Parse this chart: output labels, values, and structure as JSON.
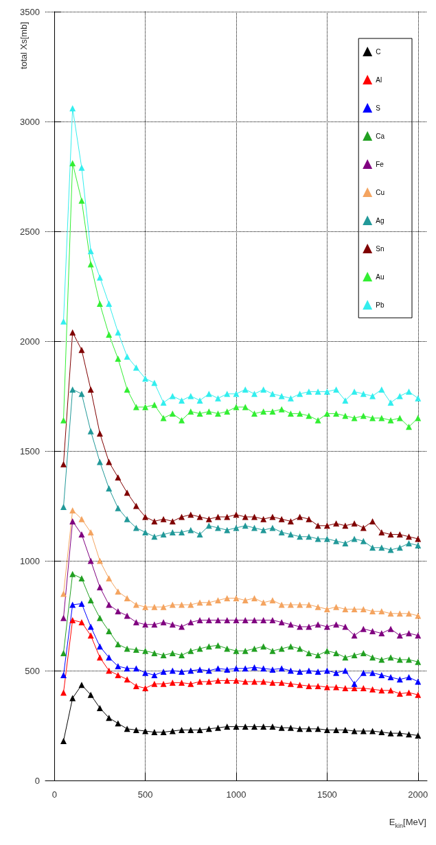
{
  "chart_data": {
    "type": "line",
    "xlabel": "E$_{kin}$[MeV]",
    "ylabel": "total Xs[mb]",
    "x": [
      50,
      100,
      150,
      200,
      250,
      300,
      350,
      400,
      450,
      500,
      550,
      600,
      650,
      700,
      750,
      800,
      850,
      900,
      950,
      1000,
      1050,
      1100,
      1150,
      1200,
      1250,
      1300,
      1350,
      1400,
      1450,
      1500,
      1550,
      1600,
      1650,
      1700,
      1750,
      1800,
      1850,
      1900,
      1950,
      2000
    ],
    "xlim": [
      -50,
      2050
    ],
    "xticks": [
      0,
      500,
      1000,
      1500,
      2000
    ],
    "ylim": [
      0,
      3500
    ],
    "yticks": [
      0,
      500,
      1000,
      1500,
      2000,
      2500,
      3000,
      3500
    ],
    "grid": true,
    "legend": "top right",
    "marker": "triangle",
    "line_style": "solid",
    "series": [
      {
        "name": "C",
        "color": "#000000",
        "values": [
          180,
          375,
          435,
          390,
          330,
          285,
          260,
          235,
          230,
          225,
          220,
          220,
          225,
          230,
          230,
          230,
          235,
          240,
          245,
          245,
          245,
          245,
          245,
          245,
          240,
          240,
          235,
          235,
          235,
          230,
          230,
          230,
          225,
          225,
          225,
          220,
          215,
          215,
          210,
          205
        ]
      },
      {
        "name": "Al",
        "color": "#ff0000",
        "values": [
          400,
          730,
          720,
          660,
          560,
          500,
          480,
          460,
          430,
          420,
          440,
          440,
          445,
          445,
          440,
          450,
          450,
          455,
          455,
          455,
          450,
          450,
          450,
          445,
          445,
          440,
          435,
          430,
          430,
          425,
          425,
          420,
          420,
          420,
          415,
          410,
          410,
          395,
          400,
          390
        ]
      },
      {
        "name": "S",
        "color": "#0000ff",
        "values": [
          480,
          800,
          805,
          700,
          610,
          560,
          520,
          510,
          510,
          490,
          480,
          495,
          500,
          495,
          500,
          505,
          500,
          510,
          505,
          510,
          510,
          515,
          510,
          505,
          510,
          500,
          495,
          500,
          495,
          500,
          490,
          500,
          440,
          490,
          490,
          480,
          470,
          460,
          470,
          450
        ]
      },
      {
        "name": "Ca",
        "color": "#22a022",
        "values": [
          580,
          940,
          920,
          820,
          740,
          680,
          620,
          600,
          595,
          590,
          580,
          570,
          580,
          570,
          590,
          600,
          610,
          615,
          600,
          590,
          590,
          600,
          610,
          590,
          600,
          610,
          600,
          580,
          570,
          590,
          580,
          560,
          570,
          580,
          560,
          550,
          560,
          550,
          550,
          540
        ]
      },
      {
        "name": "Fe",
        "color": "#800080",
        "values": [
          740,
          1180,
          1120,
          1000,
          880,
          800,
          770,
          750,
          720,
          710,
          710,
          720,
          710,
          700,
          720,
          730,
          730,
          730,
          730,
          730,
          730,
          730,
          730,
          730,
          720,
          710,
          700,
          700,
          710,
          700,
          710,
          700,
          660,
          690,
          680,
          670,
          690,
          660,
          670,
          660
        ]
      },
      {
        "name": "Cu",
        "color": "#f4a460",
        "values": [
          850,
          1230,
          1190,
          1130,
          1000,
          920,
          860,
          830,
          800,
          790,
          790,
          790,
          800,
          800,
          800,
          810,
          810,
          820,
          830,
          830,
          820,
          830,
          810,
          820,
          800,
          800,
          800,
          800,
          790,
          780,
          790,
          780,
          780,
          780,
          770,
          770,
          760,
          760,
          760,
          750
        ]
      },
      {
        "name": "Ag",
        "color": "#229999",
        "values": [
          1245,
          1780,
          1760,
          1590,
          1450,
          1330,
          1240,
          1190,
          1150,
          1130,
          1110,
          1120,
          1130,
          1130,
          1140,
          1120,
          1160,
          1150,
          1140,
          1150,
          1160,
          1150,
          1140,
          1150,
          1130,
          1120,
          1110,
          1110,
          1100,
          1100,
          1090,
          1080,
          1100,
          1090,
          1060,
          1060,
          1050,
          1060,
          1080,
          1070
        ]
      },
      {
        "name": "Sn",
        "color": "#800000",
        "values": [
          1440,
          2040,
          1960,
          1780,
          1580,
          1450,
          1380,
          1310,
          1250,
          1200,
          1180,
          1190,
          1180,
          1200,
          1210,
          1200,
          1190,
          1200,
          1200,
          1210,
          1200,
          1200,
          1190,
          1200,
          1190,
          1180,
          1200,
          1190,
          1160,
          1160,
          1170,
          1160,
          1170,
          1150,
          1180,
          1130,
          1120,
          1120,
          1110,
          1100
        ]
      },
      {
        "name": "Au",
        "color": "#33ee33",
        "values": [
          1640,
          2810,
          2640,
          2350,
          2170,
          2030,
          1920,
          1780,
          1700,
          1700,
          1710,
          1650,
          1670,
          1640,
          1680,
          1670,
          1680,
          1670,
          1680,
          1700,
          1700,
          1670,
          1680,
          1680,
          1690,
          1670,
          1670,
          1660,
          1640,
          1670,
          1670,
          1660,
          1650,
          1660,
          1650,
          1650,
          1640,
          1650,
          1610,
          1650
        ]
      },
      {
        "name": "Pb",
        "color": "#33eeee",
        "values": [
          2090,
          3060,
          2790,
          2410,
          2290,
          2170,
          2040,
          1930,
          1880,
          1830,
          1810,
          1720,
          1750,
          1730,
          1750,
          1730,
          1760,
          1740,
          1760,
          1760,
          1780,
          1760,
          1780,
          1760,
          1750,
          1740,
          1760,
          1770,
          1770,
          1770,
          1780,
          1730,
          1770,
          1760,
          1750,
          1780,
          1720,
          1750,
          1770,
          1740
        ]
      }
    ]
  }
}
